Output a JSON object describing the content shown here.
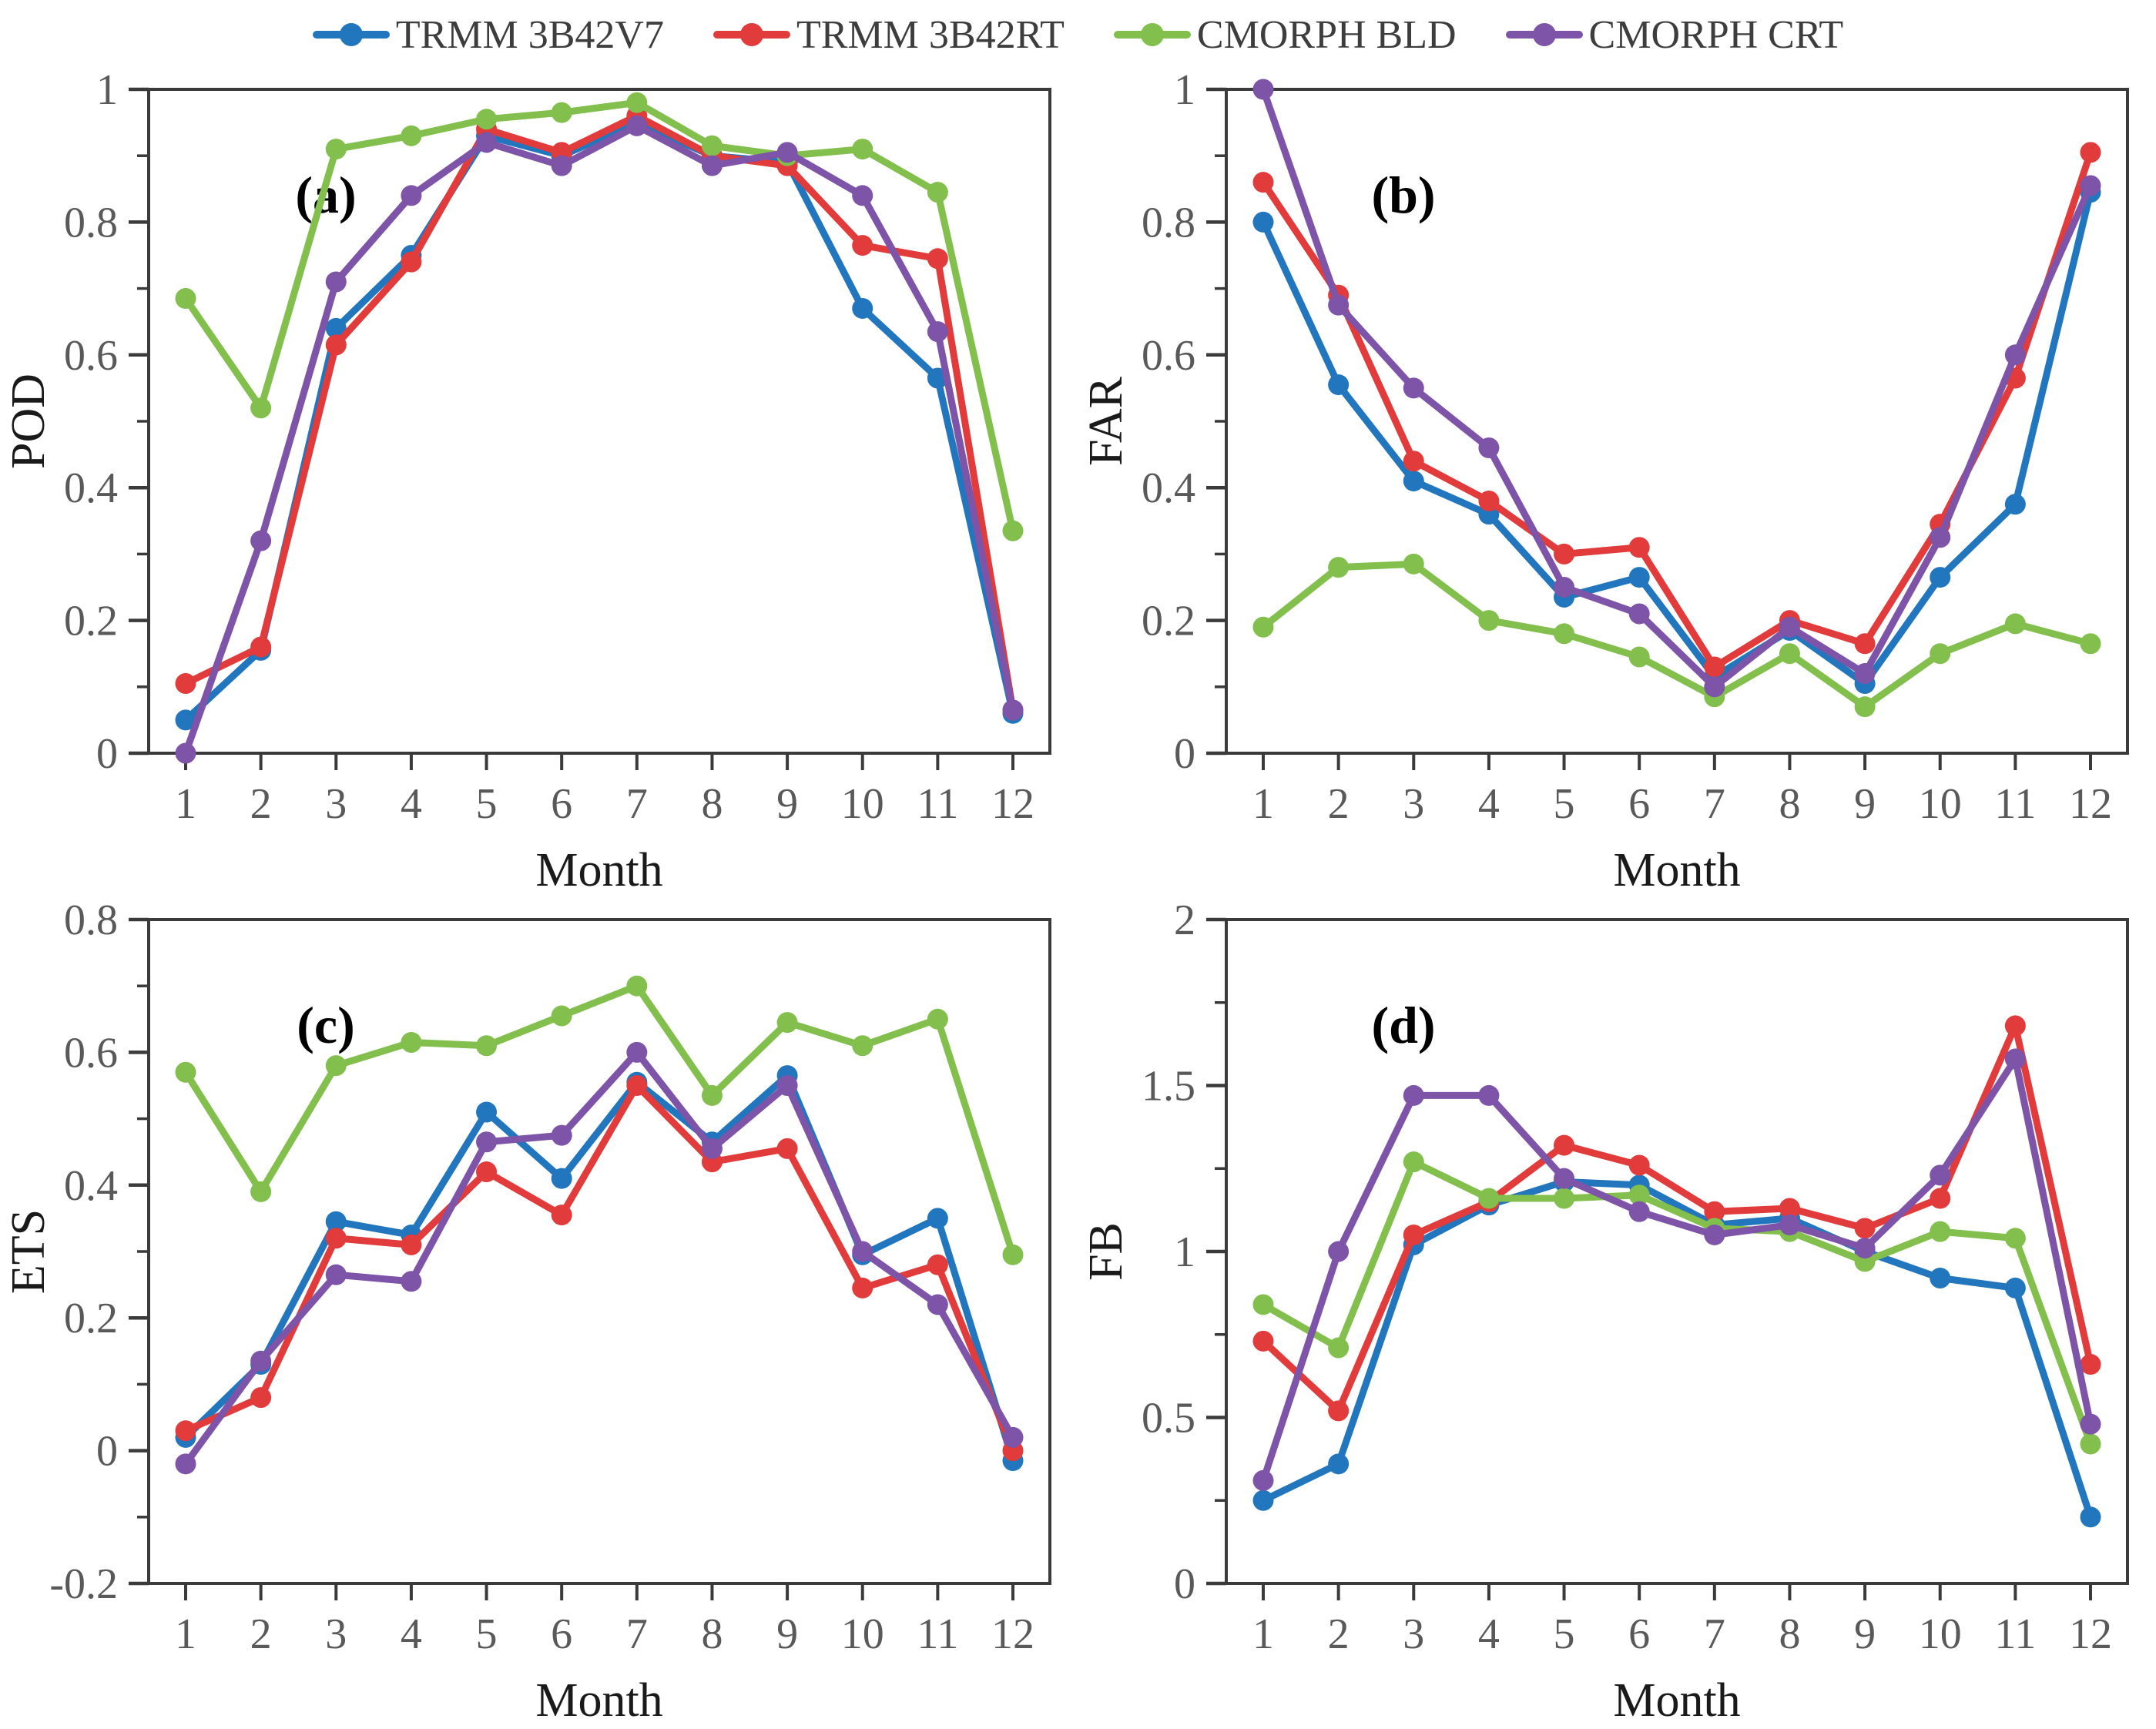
{
  "series": [
    {
      "name": "TRMM 3B42V7",
      "color": "#2276BD"
    },
    {
      "name": "TRMM 3B42RT",
      "color": "#E13B3B"
    },
    {
      "name": "CMORPH BLD",
      "color": "#82BF4D"
    },
    {
      "name": "CMORPH CRT",
      "color": "#7D54A7"
    }
  ],
  "chart_data": [
    {
      "type": "line",
      "panel_label": "(a)",
      "ylabel": "POD",
      "xlabel": "Month",
      "ylim": [
        0,
        1
      ],
      "ytick_labels": [
        "1",
        "0.8",
        "0.6",
        "0.4",
        "0.2",
        "0"
      ],
      "yticks": [
        1,
        0.8,
        0.6,
        0.4,
        0.2,
        0
      ],
      "yminor": 0.1,
      "categories": [
        1,
        2,
        3,
        4,
        5,
        6,
        7,
        8,
        9,
        10,
        11,
        12
      ],
      "legend_position": "top-shared",
      "grid": "off",
      "series": [
        {
          "name": "TRMM 3B42V7",
          "values": [
            0.05,
            0.155,
            0.64,
            0.75,
            0.93,
            0.9,
            0.95,
            0.9,
            0.89,
            0.67,
            0.565,
            0.06
          ]
        },
        {
          "name": "TRMM 3B42RT",
          "values": [
            0.105,
            0.16,
            0.615,
            0.74,
            0.94,
            0.905,
            0.96,
            0.9,
            0.885,
            0.765,
            0.745,
            0.065
          ]
        },
        {
          "name": "CMORPH BLD",
          "values": [
            0.685,
            0.52,
            0.91,
            0.93,
            0.955,
            0.965,
            0.98,
            0.915,
            0.9,
            0.91,
            0.845,
            0.335
          ]
        },
        {
          "name": "CMORPH CRT",
          "values": [
            0.0,
            0.32,
            0.71,
            0.84,
            0.92,
            0.885,
            0.945,
            0.885,
            0.905,
            0.84,
            0.635,
            0.065
          ]
        }
      ]
    },
    {
      "type": "line",
      "panel_label": "(b)",
      "ylabel": "FAR",
      "xlabel": "Month",
      "ylim": [
        0,
        1
      ],
      "ytick_labels": [
        "1",
        "0.8",
        "0.6",
        "0.4",
        "0.2",
        "0"
      ],
      "yticks": [
        1,
        0.8,
        0.6,
        0.4,
        0.2,
        0
      ],
      "yminor": 0.1,
      "categories": [
        1,
        2,
        3,
        4,
        5,
        6,
        7,
        8,
        9,
        10,
        11,
        12
      ],
      "legend_position": "top-shared",
      "grid": "off",
      "series": [
        {
          "name": "TRMM 3B42V7",
          "values": [
            0.8,
            0.555,
            0.41,
            0.36,
            0.235,
            0.265,
            0.115,
            0.185,
            0.105,
            0.265,
            0.375,
            0.845
          ]
        },
        {
          "name": "TRMM 3B42RT",
          "values": [
            0.86,
            0.69,
            0.44,
            0.38,
            0.3,
            0.31,
            0.13,
            0.2,
            0.165,
            0.345,
            0.565,
            0.905
          ]
        },
        {
          "name": "CMORPH BLD",
          "values": [
            0.19,
            0.28,
            0.285,
            0.2,
            0.18,
            0.145,
            0.085,
            0.15,
            0.07,
            0.15,
            0.195,
            0.165
          ]
        },
        {
          "name": "CMORPH CRT",
          "values": [
            1.0,
            0.675,
            0.55,
            0.46,
            0.25,
            0.21,
            0.1,
            0.19,
            0.12,
            0.325,
            0.6,
            0.855
          ]
        }
      ]
    },
    {
      "type": "line",
      "panel_label": "(c)",
      "ylabel": "ETS",
      "xlabel": "Month",
      "ylim": [
        -0.2,
        0.8
      ],
      "ytick_labels": [
        "0.8",
        "0.6",
        "0.4",
        "0.2",
        "0",
        "-0.2"
      ],
      "yticks": [
        0.8,
        0.6,
        0.4,
        0.2,
        0,
        -0.2
      ],
      "yminor": 0.1,
      "categories": [
        1,
        2,
        3,
        4,
        5,
        6,
        7,
        8,
        9,
        10,
        11,
        12
      ],
      "legend_position": "top-shared",
      "grid": "off",
      "series": [
        {
          "name": "TRMM 3B42V7",
          "values": [
            0.02,
            0.13,
            0.345,
            0.325,
            0.51,
            0.41,
            0.555,
            0.465,
            0.565,
            0.295,
            0.35,
            -0.015
          ]
        },
        {
          "name": "TRMM 3B42RT",
          "values": [
            0.03,
            0.08,
            0.32,
            0.31,
            0.42,
            0.355,
            0.55,
            0.435,
            0.455,
            0.245,
            0.28,
            0.0
          ]
        },
        {
          "name": "CMORPH BLD",
          "values": [
            0.57,
            0.39,
            0.58,
            0.615,
            0.61,
            0.655,
            0.7,
            0.535,
            0.645,
            0.61,
            0.65,
            0.295
          ]
        },
        {
          "name": "CMORPH CRT",
          "values": [
            -0.02,
            0.135,
            0.265,
            0.255,
            0.465,
            0.475,
            0.6,
            0.455,
            0.55,
            0.3,
            0.22,
            0.02
          ]
        }
      ]
    },
    {
      "type": "line",
      "panel_label": "(d)",
      "ylabel": "FB",
      "xlabel": "Month",
      "ylim": [
        0,
        2
      ],
      "ytick_labels": [
        "2",
        "1.5",
        "1",
        "0.5",
        "0"
      ],
      "yticks": [
        2,
        1.5,
        1,
        0.5,
        0
      ],
      "yminor": 0.25,
      "categories": [
        1,
        2,
        3,
        4,
        5,
        6,
        7,
        8,
        9,
        10,
        11,
        12
      ],
      "legend_position": "top-shared",
      "grid": "off",
      "series": [
        {
          "name": "TRMM 3B42V7",
          "values": [
            0.25,
            0.36,
            1.02,
            1.14,
            1.21,
            1.2,
            1.08,
            1.1,
            1.0,
            0.92,
            0.89,
            0.2
          ]
        },
        {
          "name": "TRMM 3B42RT",
          "values": [
            0.73,
            0.52,
            1.05,
            1.15,
            1.32,
            1.26,
            1.12,
            1.13,
            1.07,
            1.16,
            1.68,
            0.66
          ]
        },
        {
          "name": "CMORPH BLD",
          "values": [
            0.84,
            0.71,
            1.27,
            1.16,
            1.16,
            1.17,
            1.07,
            1.06,
            0.97,
            1.06,
            1.04,
            0.42
          ]
        },
        {
          "name": "CMORPH CRT",
          "values": [
            0.31,
            1.0,
            1.47,
            1.47,
            1.22,
            1.12,
            1.05,
            1.08,
            1.01,
            1.23,
            1.58,
            0.48
          ]
        }
      ]
    }
  ],
  "colors": {
    "axis": "#3a3a3a",
    "tick_text": "#595959",
    "axis_title": "#1a1a1a",
    "panel_letter": "#000000",
    "legend_text": "#3d3d3d",
    "background": "#ffffff"
  }
}
